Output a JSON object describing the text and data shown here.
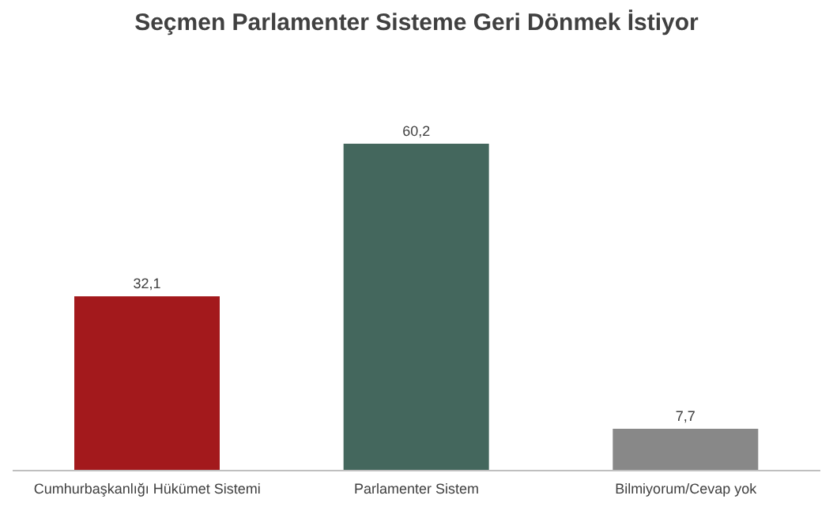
{
  "chart_data": {
    "type": "bar",
    "title": "Seçmen Parlamenter Sisteme Geri Dönmek İstiyor",
    "categories": [
      "Cumhurbaşkanlığı Hükümet Sistemi",
      "Parlamenter Sistem",
      "Bilmiyorum/Cevap yok"
    ],
    "values": [
      32.1,
      60.2,
      7.7
    ],
    "colors": [
      "#a3191c",
      "#44675d",
      "#888888"
    ],
    "value_labels": [
      "32,1",
      "60,2",
      "7,7"
    ]
  }
}
